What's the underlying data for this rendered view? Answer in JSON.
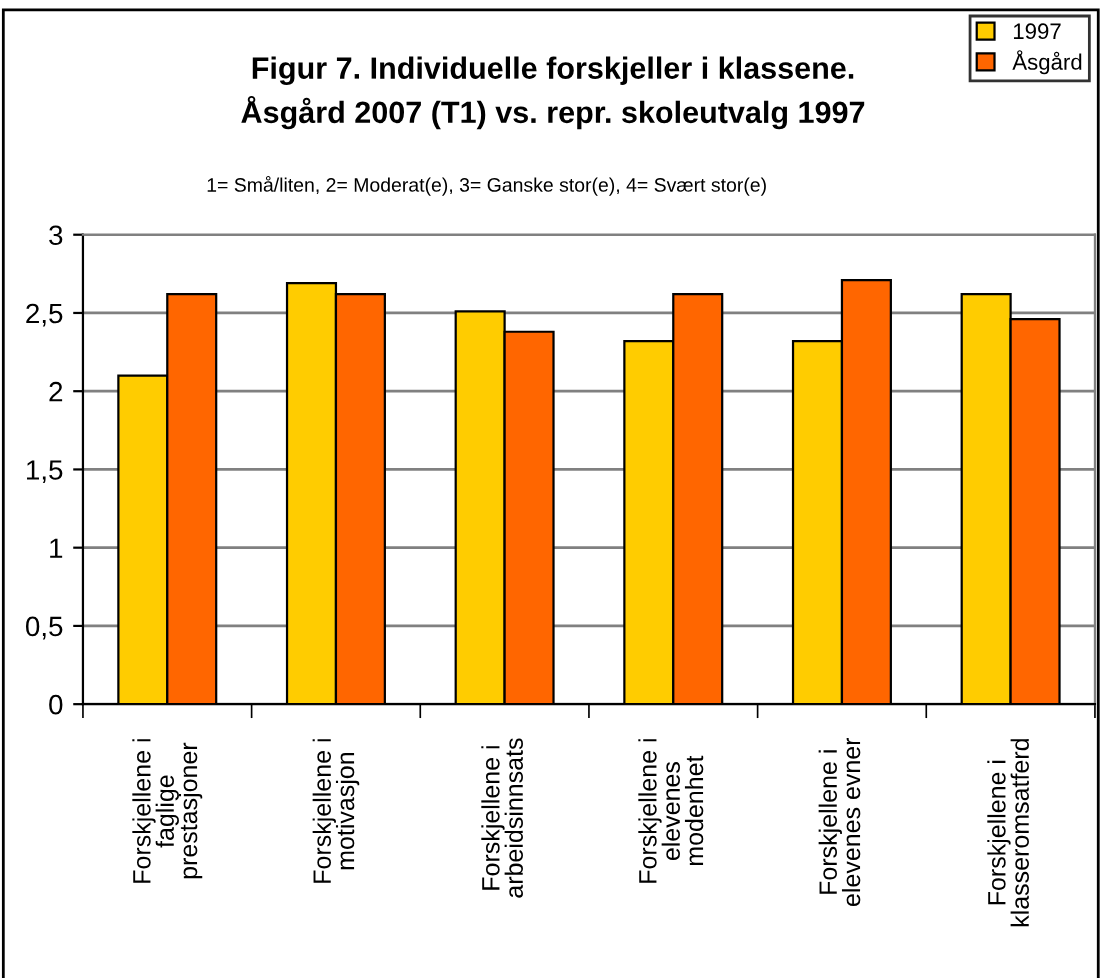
{
  "chart_data": {
    "type": "bar",
    "title": "Figur 7. Individuelle forskjeller i klassene.\nÅsgård 2007 (T1) vs. repr. skoleutvalg 1997",
    "subtitle": "1= Små/liten, 2= Moderat(e), 3= Ganske stor(e), 4= Svært stor(e)",
    "categories": [
      "Forskjellene i\nfaglige\nprestasjoner",
      "Forskjellene i\nmotivasjon",
      "Forskjellene i\narbeidsinnsats",
      "Forskjellene i\nelevenes\nmodenhet",
      "Forskjellene i\nelevenes evner",
      "Forskjellene i\nklasseromsatferd"
    ],
    "series": [
      {
        "name": "1997",
        "color": "#ffcc00",
        "values": [
          2.1,
          2.69,
          2.51,
          2.32,
          2.32,
          2.62
        ]
      },
      {
        "name": "Åsgård",
        "color": "#ff6600",
        "values": [
          2.62,
          2.62,
          2.38,
          2.62,
          2.71,
          2.46
        ]
      }
    ],
    "ylim": [
      0,
      3
    ],
    "yticks": [
      0,
      {
        "value": 0.5,
        "label": "0,5"
      },
      1,
      {
        "value": 1.5,
        "label": "1,5"
      },
      2,
      {
        "value": 2.5,
        "label": "2,5"
      },
      3
    ],
    "grid": "y",
    "legend": "top right"
  }
}
